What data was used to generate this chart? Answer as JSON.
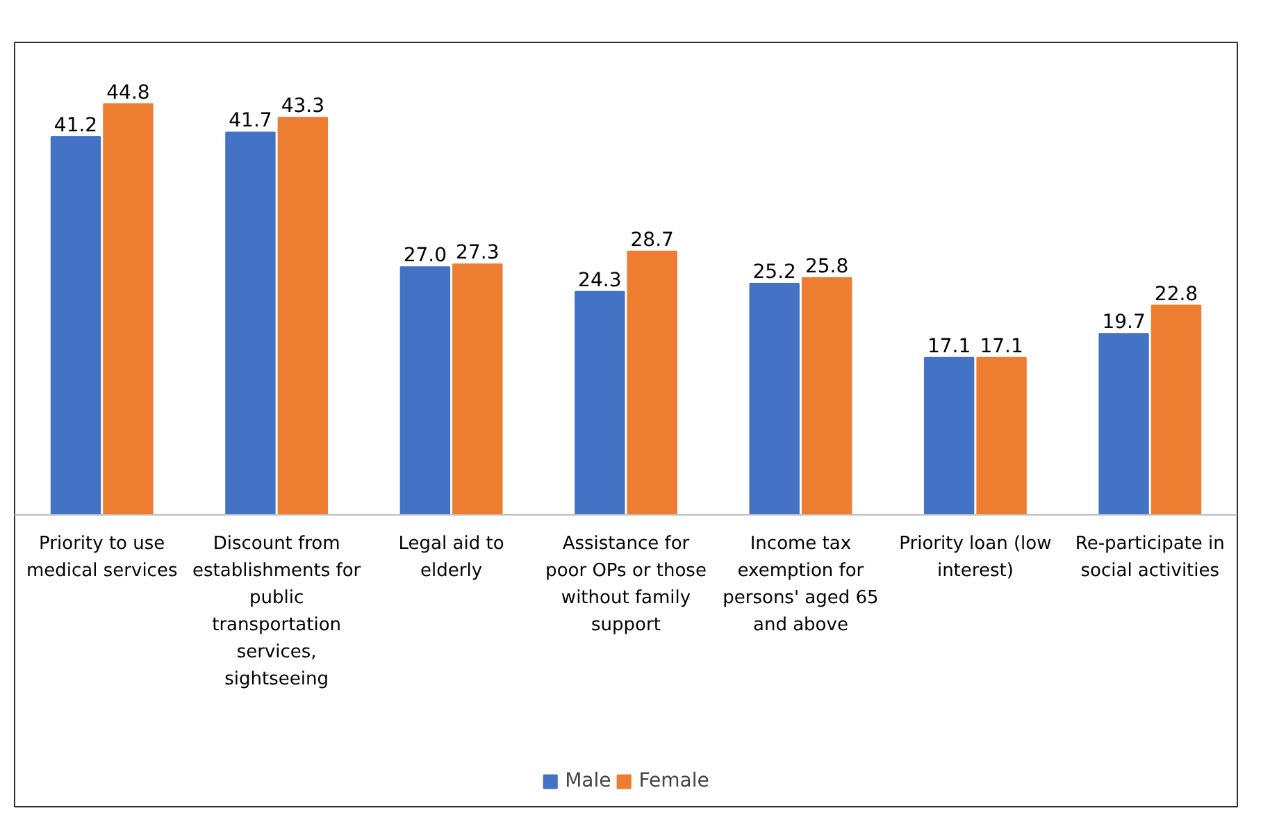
{
  "chart_data": {
    "type": "bar",
    "categories": [
      "Priority to use medical services",
      "Discount from establishments for public transportation services, sightseeing",
      "Legal aid to elderly",
      "Assistance for poor OPs or those without family support",
      "Income tax exemption for persons' aged 65 and above",
      "Priority loan (low interest)",
      "Re-participate in social activities"
    ],
    "series": [
      {
        "name": "Male",
        "color": "#4472c4",
        "values": [
          41.2,
          41.7,
          27.0,
          24.3,
          25.2,
          17.1,
          19.7
        ],
        "value_labels": [
          "41.2",
          "41.7",
          "27.0",
          "24.3",
          "25.2",
          "17.1",
          "19.7"
        ]
      },
      {
        "name": "Female",
        "color": "#ed7d31",
        "values": [
          44.8,
          43.3,
          27.3,
          28.7,
          25.8,
          17.1,
          22.8
        ],
        "value_labels": [
          "44.8",
          "43.3",
          "27.3",
          "28.7",
          "25.8",
          "17.1",
          "22.8"
        ]
      }
    ],
    "grid": false,
    "legend": "bottom"
  }
}
